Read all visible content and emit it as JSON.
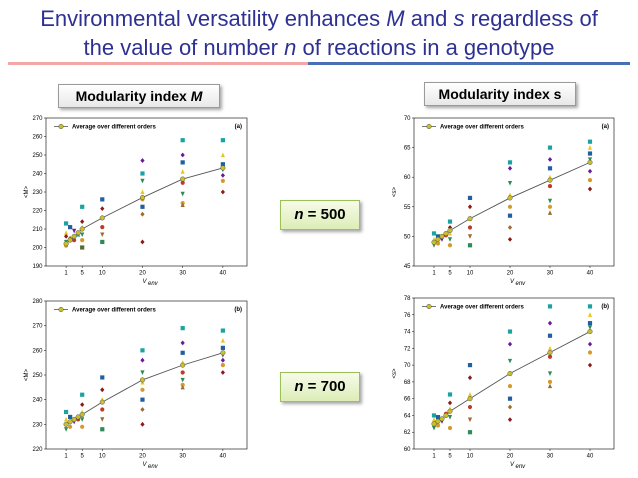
{
  "slide": {
    "title_line1_a": "Environmental versatility enhances ",
    "title_line1_m": "M",
    "title_line1_b": " and ",
    "title_line1_s": "s",
    "title_line1_c": " regardless of",
    "title_line2_a": "the value of number ",
    "title_line2_n": "n",
    "title_line2_b": " of reactions in a genotype",
    "left_header_a": "Modularity index ",
    "left_header_m": "M",
    "right_header": "Modularity index s",
    "n500_prefix": "n",
    "n500_value": " = 500",
    "n700_prefix": "n",
    "n700_value": " = 700",
    "accent_color": "#2e3192"
  },
  "chart_data": [
    {
      "id": "M-n500",
      "type": "scatter",
      "panel_label": "(a)",
      "ylabel": "<M>",
      "xlabel": "V_env",
      "xlabel_main": "V",
      "xlabel_sub": "env",
      "legend": "Average over different orders",
      "ylim": [
        190,
        270
      ],
      "yticks": [
        190,
        200,
        210,
        220,
        230,
        240,
        250,
        260,
        270
      ],
      "xticks": [
        1,
        5,
        10,
        20,
        30,
        40
      ],
      "average_line": {
        "x": [
          1,
          2,
          3,
          4,
          5,
          10,
          20,
          30,
          40
        ],
        "y": [
          202,
          204,
          206,
          208,
          210,
          216,
          227,
          237,
          243
        ]
      },
      "points": [
        [
          1,
          213,
          "#1aa3a3",
          "s"
        ],
        [
          1,
          208,
          "#e6c820",
          "t"
        ],
        [
          1,
          206,
          "#8b1a1a",
          "d"
        ],
        [
          1,
          203,
          "#2e8b57",
          "v"
        ],
        [
          1,
          201,
          "#d49a2a",
          "o"
        ],
        [
          2,
          211,
          "#2060a0",
          "s"
        ],
        [
          2,
          205,
          "#9c6b2e",
          "d"
        ],
        [
          3,
          209,
          "#6a1b9a",
          "v"
        ],
        [
          3,
          204,
          "#c0392b",
          "o"
        ],
        [
          4,
          207,
          "#1aa3a3",
          "t"
        ],
        [
          5,
          222,
          "#1aa3a3",
          "s"
        ],
        [
          5,
          214,
          "#8b1a1a",
          "d"
        ],
        [
          5,
          211,
          "#e6c820",
          "t"
        ],
        [
          5,
          207,
          "#2e8b57",
          "v"
        ],
        [
          5,
          204,
          "#d49a2a",
          "o"
        ],
        [
          5,
          200,
          "#556b2f",
          "s"
        ],
        [
          10,
          226,
          "#2060a0",
          "s"
        ],
        [
          10,
          221,
          "#8b1a1a",
          "d"
        ],
        [
          10,
          216,
          "#e6c820",
          "t"
        ],
        [
          10,
          211,
          "#c0392b",
          "o"
        ],
        [
          10,
          207,
          "#9c6b2e",
          "v"
        ],
        [
          10,
          203,
          "#2e8b57",
          "s"
        ],
        [
          20,
          247,
          "#6a1b9a",
          "d"
        ],
        [
          20,
          240,
          "#1aa3a3",
          "s"
        ],
        [
          20,
          236,
          "#2e8b57",
          "v"
        ],
        [
          20,
          230,
          "#e6c820",
          "t"
        ],
        [
          20,
          226,
          "#d49a2a",
          "o"
        ],
        [
          20,
          222,
          "#2060a0",
          "s"
        ],
        [
          20,
          218,
          "#9c6b2e",
          "d"
        ],
        [
          20,
          203,
          "#8b1a1a",
          "d"
        ],
        [
          30,
          258,
          "#1aa3a3",
          "s"
        ],
        [
          30,
          250,
          "#6a1b9a",
          "d"
        ],
        [
          30,
          246,
          "#2060a0",
          "s"
        ],
        [
          30,
          241,
          "#e6c820",
          "t"
        ],
        [
          30,
          235,
          "#c0392b",
          "o"
        ],
        [
          30,
          229,
          "#2e8b57",
          "v"
        ],
        [
          30,
          224,
          "#d49a2a",
          "o"
        ],
        [
          30,
          223,
          "#9c6b2e",
          "t"
        ],
        [
          40,
          258,
          "#1aa3a3",
          "s"
        ],
        [
          40,
          250,
          "#e6c820",
          "t"
        ],
        [
          40,
          245,
          "#2060a0",
          "s"
        ],
        [
          40,
          242,
          "#2e8b57",
          "v"
        ],
        [
          40,
          239,
          "#6a1b9a",
          "d"
        ],
        [
          40,
          236,
          "#d49a2a",
          "o"
        ],
        [
          40,
          230,
          "#8b1a1a",
          "d"
        ]
      ]
    },
    {
      "id": "s-n500",
      "type": "scatter",
      "panel_label": "(a)",
      "ylabel": "<s>",
      "xlabel": "V_env",
      "xlabel_main": "V",
      "xlabel_sub": "env",
      "legend": "Average over different orders",
      "ylim": [
        45,
        70
      ],
      "yticks": [
        45,
        50,
        55,
        60,
        65,
        70
      ],
      "xticks": [
        1,
        5,
        10,
        20,
        30,
        40
      ],
      "average_line": {
        "x": [
          1,
          2,
          3,
          4,
          5,
          10,
          20,
          30,
          40
        ],
        "y": [
          49,
          49.5,
          50,
          50.5,
          51,
          53,
          56.5,
          59.5,
          62.5
        ]
      },
      "points": [
        [
          1,
          50.5,
          "#1aa3a3",
          "s"
        ],
        [
          1,
          49.5,
          "#e6c820",
          "t"
        ],
        [
          1,
          49,
          "#8b1a1a",
          "d"
        ],
        [
          1,
          48.5,
          "#2e8b57",
          "v"
        ],
        [
          2,
          50,
          "#2060a0",
          "s"
        ],
        [
          2,
          48.8,
          "#d49a2a",
          "o"
        ],
        [
          3,
          49.5,
          "#6a1b9a",
          "v"
        ],
        [
          4,
          50.2,
          "#c0392b",
          "o"
        ],
        [
          5,
          52.5,
          "#1aa3a3",
          "s"
        ],
        [
          5,
          51.5,
          "#8b1a1a",
          "d"
        ],
        [
          5,
          50.5,
          "#e6c820",
          "t"
        ],
        [
          5,
          49.5,
          "#2e8b57",
          "v"
        ],
        [
          5,
          48.5,
          "#d49a2a",
          "o"
        ],
        [
          10,
          56.5,
          "#2060a0",
          "s"
        ],
        [
          10,
          55,
          "#8b1a1a",
          "d"
        ],
        [
          10,
          53,
          "#e6c820",
          "t"
        ],
        [
          10,
          51.5,
          "#c0392b",
          "o"
        ],
        [
          10,
          50,
          "#9c6b2e",
          "v"
        ],
        [
          10,
          48.5,
          "#2e8b57",
          "s"
        ],
        [
          20,
          62.5,
          "#1aa3a3",
          "s"
        ],
        [
          20,
          61.5,
          "#6a1b9a",
          "d"
        ],
        [
          20,
          59,
          "#2e8b57",
          "v"
        ],
        [
          20,
          57,
          "#e6c820",
          "t"
        ],
        [
          20,
          55,
          "#d49a2a",
          "o"
        ],
        [
          20,
          53.5,
          "#2060a0",
          "s"
        ],
        [
          20,
          51.5,
          "#9c6b2e",
          "d"
        ],
        [
          20,
          49.5,
          "#8b1a1a",
          "d"
        ],
        [
          30,
          65,
          "#1aa3a3",
          "s"
        ],
        [
          30,
          63,
          "#6a1b9a",
          "d"
        ],
        [
          30,
          61.5,
          "#2060a0",
          "s"
        ],
        [
          30,
          60,
          "#e6c820",
          "t"
        ],
        [
          30,
          58.5,
          "#c0392b",
          "o"
        ],
        [
          30,
          56,
          "#2e8b57",
          "v"
        ],
        [
          30,
          55,
          "#d49a2a",
          "o"
        ],
        [
          30,
          54,
          "#9c6b2e",
          "t"
        ],
        [
          40,
          66,
          "#1aa3a3",
          "s"
        ],
        [
          40,
          65,
          "#e6c820",
          "t"
        ],
        [
          40,
          64,
          "#2060a0",
          "s"
        ],
        [
          40,
          63,
          "#2e8b57",
          "v"
        ],
        [
          40,
          61,
          "#6a1b9a",
          "d"
        ],
        [
          40,
          59.5,
          "#d49a2a",
          "o"
        ],
        [
          40,
          58,
          "#8b1a1a",
          "d"
        ]
      ]
    },
    {
      "id": "M-n700",
      "type": "scatter",
      "panel_label": "(b)",
      "ylabel": "<M>",
      "xlabel": "V_env",
      "xlabel_main": "V",
      "xlabel_sub": "env",
      "legend": "Average over different orders",
      "ylim": [
        220,
        280
      ],
      "yticks": [
        220,
        230,
        240,
        250,
        260,
        270,
        280
      ],
      "xticks": [
        1,
        5,
        10,
        20,
        30,
        40
      ],
      "average_line": {
        "x": [
          1,
          2,
          3,
          4,
          5,
          10,
          20,
          30,
          40
        ],
        "y": [
          230,
          231,
          232,
          233,
          234,
          239,
          248,
          254,
          259
        ]
      },
      "points": [
        [
          1,
          235,
          "#1aa3a3",
          "s"
        ],
        [
          1,
          232,
          "#e6c820",
          "t"
        ],
        [
          1,
          230,
          "#8b1a1a",
          "d"
        ],
        [
          1,
          228,
          "#2e8b57",
          "v"
        ],
        [
          2,
          233,
          "#2060a0",
          "s"
        ],
        [
          2,
          229,
          "#d49a2a",
          "o"
        ],
        [
          3,
          231,
          "#6a1b9a",
          "v"
        ],
        [
          4,
          232,
          "#c0392b",
          "o"
        ],
        [
          5,
          242,
          "#1aa3a3",
          "s"
        ],
        [
          5,
          238,
          "#8b1a1a",
          "d"
        ],
        [
          5,
          235,
          "#e6c820",
          "t"
        ],
        [
          5,
          232,
          "#2e8b57",
          "v"
        ],
        [
          5,
          229,
          "#d49a2a",
          "o"
        ],
        [
          10,
          249,
          "#2060a0",
          "s"
        ],
        [
          10,
          244,
          "#8b1a1a",
          "d"
        ],
        [
          10,
          240,
          "#e6c820",
          "t"
        ],
        [
          10,
          236,
          "#c0392b",
          "o"
        ],
        [
          10,
          232,
          "#9c6b2e",
          "v"
        ],
        [
          10,
          228,
          "#2e8b57",
          "s"
        ],
        [
          20,
          260,
          "#1aa3a3",
          "s"
        ],
        [
          20,
          256,
          "#6a1b9a",
          "d"
        ],
        [
          20,
          251,
          "#2e8b57",
          "v"
        ],
        [
          20,
          247,
          "#e6c820",
          "t"
        ],
        [
          20,
          244,
          "#d49a2a",
          "o"
        ],
        [
          20,
          240,
          "#2060a0",
          "s"
        ],
        [
          20,
          236,
          "#9c6b2e",
          "d"
        ],
        [
          20,
          230,
          "#8b1a1a",
          "d"
        ],
        [
          30,
          269,
          "#1aa3a3",
          "s"
        ],
        [
          30,
          263,
          "#6a1b9a",
          "d"
        ],
        [
          30,
          259,
          "#2060a0",
          "s"
        ],
        [
          30,
          255,
          "#e6c820",
          "t"
        ],
        [
          30,
          251,
          "#c0392b",
          "o"
        ],
        [
          30,
          248,
          "#2e8b57",
          "v"
        ],
        [
          30,
          246,
          "#d49a2a",
          "o"
        ],
        [
          30,
          245,
          "#9c6b2e",
          "t"
        ],
        [
          40,
          268,
          "#1aa3a3",
          "s"
        ],
        [
          40,
          264,
          "#e6c820",
          "t"
        ],
        [
          40,
          261,
          "#2060a0",
          "s"
        ],
        [
          40,
          258,
          "#2e8b57",
          "v"
        ],
        [
          40,
          256,
          "#6a1b9a",
          "d"
        ],
        [
          40,
          254,
          "#d49a2a",
          "o"
        ],
        [
          40,
          251,
          "#8b1a1a",
          "d"
        ]
      ]
    },
    {
      "id": "s-n700",
      "type": "scatter",
      "panel_label": "(b)",
      "ylabel": "<s>",
      "xlabel": "V_env",
      "xlabel_main": "V",
      "xlabel_sub": "env",
      "legend": "Average over different orders",
      "ylim": [
        60,
        78
      ],
      "yticks": [
        60,
        62,
        64,
        66,
        68,
        70,
        72,
        74,
        76,
        78
      ],
      "xticks": [
        1,
        5,
        10,
        20,
        30,
        40
      ],
      "average_line": {
        "x": [
          1,
          2,
          3,
          4,
          5,
          10,
          20,
          30,
          40
        ],
        "y": [
          63,
          63.3,
          63.6,
          64,
          64.5,
          66,
          69,
          71.5,
          74
        ]
      },
      "points": [
        [
          1,
          64,
          "#1aa3a3",
          "s"
        ],
        [
          1,
          63.5,
          "#e6c820",
          "t"
        ],
        [
          1,
          63,
          "#8b1a1a",
          "d"
        ],
        [
          1,
          62.5,
          "#2e8b57",
          "v"
        ],
        [
          2,
          63.8,
          "#2060a0",
          "s"
        ],
        [
          2,
          62.8,
          "#d49a2a",
          "o"
        ],
        [
          3,
          63.3,
          "#6a1b9a",
          "v"
        ],
        [
          4,
          64.2,
          "#c0392b",
          "o"
        ],
        [
          5,
          66.5,
          "#1aa3a3",
          "s"
        ],
        [
          5,
          65.5,
          "#8b1a1a",
          "d"
        ],
        [
          5,
          64.8,
          "#e6c820",
          "t"
        ],
        [
          5,
          63.8,
          "#2e8b57",
          "v"
        ],
        [
          5,
          62.5,
          "#d49a2a",
          "o"
        ],
        [
          10,
          70,
          "#2060a0",
          "s"
        ],
        [
          10,
          68.5,
          "#8b1a1a",
          "d"
        ],
        [
          10,
          66.5,
          "#e6c820",
          "t"
        ],
        [
          10,
          65,
          "#c0392b",
          "o"
        ],
        [
          10,
          63.5,
          "#9c6b2e",
          "v"
        ],
        [
          10,
          62,
          "#2e8b57",
          "s"
        ],
        [
          20,
          74,
          "#1aa3a3",
          "s"
        ],
        [
          20,
          72.5,
          "#6a1b9a",
          "d"
        ],
        [
          20,
          70.5,
          "#2e8b57",
          "v"
        ],
        [
          20,
          69,
          "#e6c820",
          "t"
        ],
        [
          20,
          67.5,
          "#d49a2a",
          "o"
        ],
        [
          20,
          66,
          "#2060a0",
          "s"
        ],
        [
          20,
          65,
          "#9c6b2e",
          "d"
        ],
        [
          20,
          63.5,
          "#8b1a1a",
          "d"
        ],
        [
          30,
          77,
          "#1aa3a3",
          "s"
        ],
        [
          30,
          75,
          "#6a1b9a",
          "d"
        ],
        [
          30,
          73.5,
          "#2060a0",
          "s"
        ],
        [
          30,
          72,
          "#e6c820",
          "t"
        ],
        [
          30,
          71,
          "#c0392b",
          "o"
        ],
        [
          30,
          69,
          "#2e8b57",
          "v"
        ],
        [
          30,
          68,
          "#d49a2a",
          "o"
        ],
        [
          30,
          67.5,
          "#9c6b2e",
          "t"
        ],
        [
          40,
          77,
          "#1aa3a3",
          "s"
        ],
        [
          40,
          76,
          "#e6c820",
          "t"
        ],
        [
          40,
          75,
          "#2060a0",
          "s"
        ],
        [
          40,
          74.5,
          "#2e8b57",
          "v"
        ],
        [
          40,
          72.5,
          "#6a1b9a",
          "d"
        ],
        [
          40,
          71.5,
          "#d49a2a",
          "o"
        ],
        [
          40,
          70,
          "#8b1a1a",
          "d"
        ]
      ]
    }
  ]
}
